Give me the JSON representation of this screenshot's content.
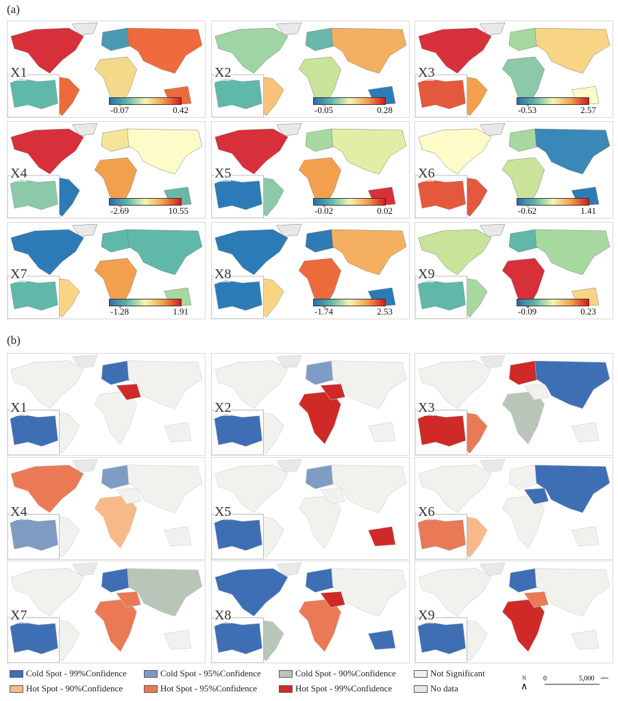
{
  "labels": {
    "a": "(a)",
    "b": "(b)"
  },
  "colors": {
    "no_data": "#e8e8e8",
    "not_sig": "#f1f1ee",
    "cold99": "#3e6fb5",
    "cold95": "#7f9cc4",
    "cold90": "#b8c6b9",
    "hot90": "#f7b98a",
    "hot95": "#ea7a55",
    "hot99": "#cf2a27"
  },
  "panels_a": [
    {
      "name": "X1",
      "min": "-0.07",
      "max": "0.42",
      "regions": {
        "na": "#d7303a",
        "sa": "#ec6b3d",
        "eu": "#4a9ab5",
        "af": "#f4d98a",
        "as": "#ef6a3c",
        "au": "#ec6b3d",
        "inset": "#5fb8a8"
      }
    },
    {
      "name": "X2",
      "min": "-0.05",
      "max": "0.28",
      "regions": {
        "na": "#9fd5a4",
        "sa": "#f7c37a",
        "eu": "#6ab7aa",
        "af": "#c9e39b",
        "as": "#f4b060",
        "au": "#2c7bb6",
        "inset": "#5fb8a8"
      }
    },
    {
      "name": "X3",
      "min": "-0.53",
      "max": "2.57",
      "regions": {
        "na": "#d7303a",
        "sa": "#f3a04e",
        "eu": "#a7d8a0",
        "af": "#8cc9a8",
        "as": "#f8d485",
        "au": "#fdfbc8",
        "inset": "#e4583d"
      }
    },
    {
      "name": "X4",
      "min": "-2.69",
      "max": "10.55",
      "regions": {
        "na": "#d7303a",
        "sa": "#2c7bb6",
        "eu": "#f5e697",
        "af": "#f3a04e",
        "as": "#fdfbc8",
        "au": "#6ab7aa",
        "inset": "#8cc9a8"
      }
    },
    {
      "name": "X5",
      "min": "-0.02",
      "max": "0.02",
      "regions": {
        "na": "#d7303a",
        "sa": "#8cc9a8",
        "eu": "#a7d8a0",
        "af": "#f3a04e",
        "as": "#e1efa6",
        "au": "#d7303a",
        "inset": "#2c7bb6"
      }
    },
    {
      "name": "X6",
      "min": "-0.62",
      "max": "1.41",
      "regions": {
        "na": "#fdfbc8",
        "sa": "#e4583d",
        "eu": "#a7d8a0",
        "af": "#c9e39b",
        "as": "#3a88b8",
        "au": "#2c7bb6",
        "inset": "#e4583d"
      }
    },
    {
      "name": "X7",
      "min": "-1.28",
      "max": "1.91",
      "regions": {
        "na": "#2c7bb6",
        "sa": "#f8d485",
        "eu": "#5fb8a8",
        "af": "#f3a04e",
        "as": "#5fb8a8",
        "au": "#a7d8a0",
        "inset": "#5fb8a8"
      }
    },
    {
      "name": "X8",
      "min": "-1.74",
      "max": "2.53",
      "regions": {
        "na": "#2c7bb6",
        "sa": "#f8d485",
        "eu": "#2c7bb6",
        "af": "#ec6b3d",
        "as": "#f4b060",
        "au": "#2c7bb6",
        "inset": "#2c7bb6"
      }
    },
    {
      "name": "X9",
      "min": "-0.09",
      "max": "0.23",
      "regions": {
        "na": "#c9e39b",
        "sa": "#a7d8a0",
        "eu": "#5fb8a8",
        "af": "#d7303a",
        "as": "#a7d8a0",
        "au": "#f8d485",
        "inset": "#5fb8a8"
      }
    }
  ],
  "panels_b": [
    {
      "name": "X1",
      "regions": {
        "na": "not_sig",
        "sa": "not_sig",
        "eu": "cold99",
        "af": "not_sig",
        "as": "not_sig",
        "au": "not_sig",
        "inset": "cold99",
        "me": "hot99"
      }
    },
    {
      "name": "X2",
      "regions": {
        "na": "not_sig",
        "sa": "not_sig",
        "eu": "cold95",
        "af": "hot99",
        "as": "not_sig",
        "au": "not_sig",
        "inset": "cold99",
        "me": "hot99"
      }
    },
    {
      "name": "X3",
      "regions": {
        "na": "not_sig",
        "sa": "hot95",
        "eu": "hot99",
        "af": "cold90",
        "as": "cold99",
        "au": "not_sig",
        "inset": "hot99",
        "me": "not_sig"
      }
    },
    {
      "name": "X4",
      "regions": {
        "na": "hot95",
        "sa": "not_sig",
        "eu": "cold95",
        "af": "hot90",
        "as": "not_sig",
        "au": "not_sig",
        "inset": "cold95",
        "me": "not_sig"
      }
    },
    {
      "name": "X5",
      "regions": {
        "na": "not_sig",
        "sa": "not_sig",
        "eu": "cold95",
        "af": "not_sig",
        "as": "not_sig",
        "au": "hot99",
        "inset": "cold99",
        "me": "not_sig"
      }
    },
    {
      "name": "X6",
      "regions": {
        "na": "not_sig",
        "sa": "hot90",
        "eu": "not_sig",
        "af": "not_sig",
        "as": "cold99",
        "au": "not_sig",
        "inset": "hot95",
        "me": "cold99"
      }
    },
    {
      "name": "X7",
      "regions": {
        "na": "not_sig",
        "sa": "not_sig",
        "eu": "cold99",
        "af": "hot95",
        "as": "cold90",
        "au": "not_sig",
        "inset": "cold99",
        "me": "hot95"
      }
    },
    {
      "name": "X8",
      "regions": {
        "na": "cold99",
        "sa": "cold90",
        "eu": "cold99",
        "af": "hot95",
        "as": "not_sig",
        "au": "cold99",
        "inset": "cold99",
        "me": "hot99"
      }
    },
    {
      "name": "X9",
      "regions": {
        "na": "not_sig",
        "sa": "not_sig",
        "eu": "cold99",
        "af": "hot99",
        "as": "not_sig",
        "au": "not_sig",
        "inset": "cold99",
        "me": "hot95"
      }
    }
  ],
  "legend": [
    {
      "key": "cold99",
      "label": "Cold Spot - 99%Confidence"
    },
    {
      "key": "cold95",
      "label": "Cold Spot - 95%Confidence"
    },
    {
      "key": "cold90",
      "label": "Cold Spot - 90%Confidence"
    },
    {
      "key": "not_sig",
      "label": "Not Significant"
    },
    {
      "key": "hot90",
      "label": "Hot Spot - 90%Confidence"
    },
    {
      "key": "hot95",
      "label": "Hot Spot - 95%Confidence"
    },
    {
      "key": "hot99",
      "label": "Hot Spot - 99%Confidence"
    },
    {
      "key": "no_data",
      "label": "No data"
    }
  ],
  "north": "N",
  "scale": {
    "start": "0",
    "end": "5,000",
    "unit": "miles"
  }
}
